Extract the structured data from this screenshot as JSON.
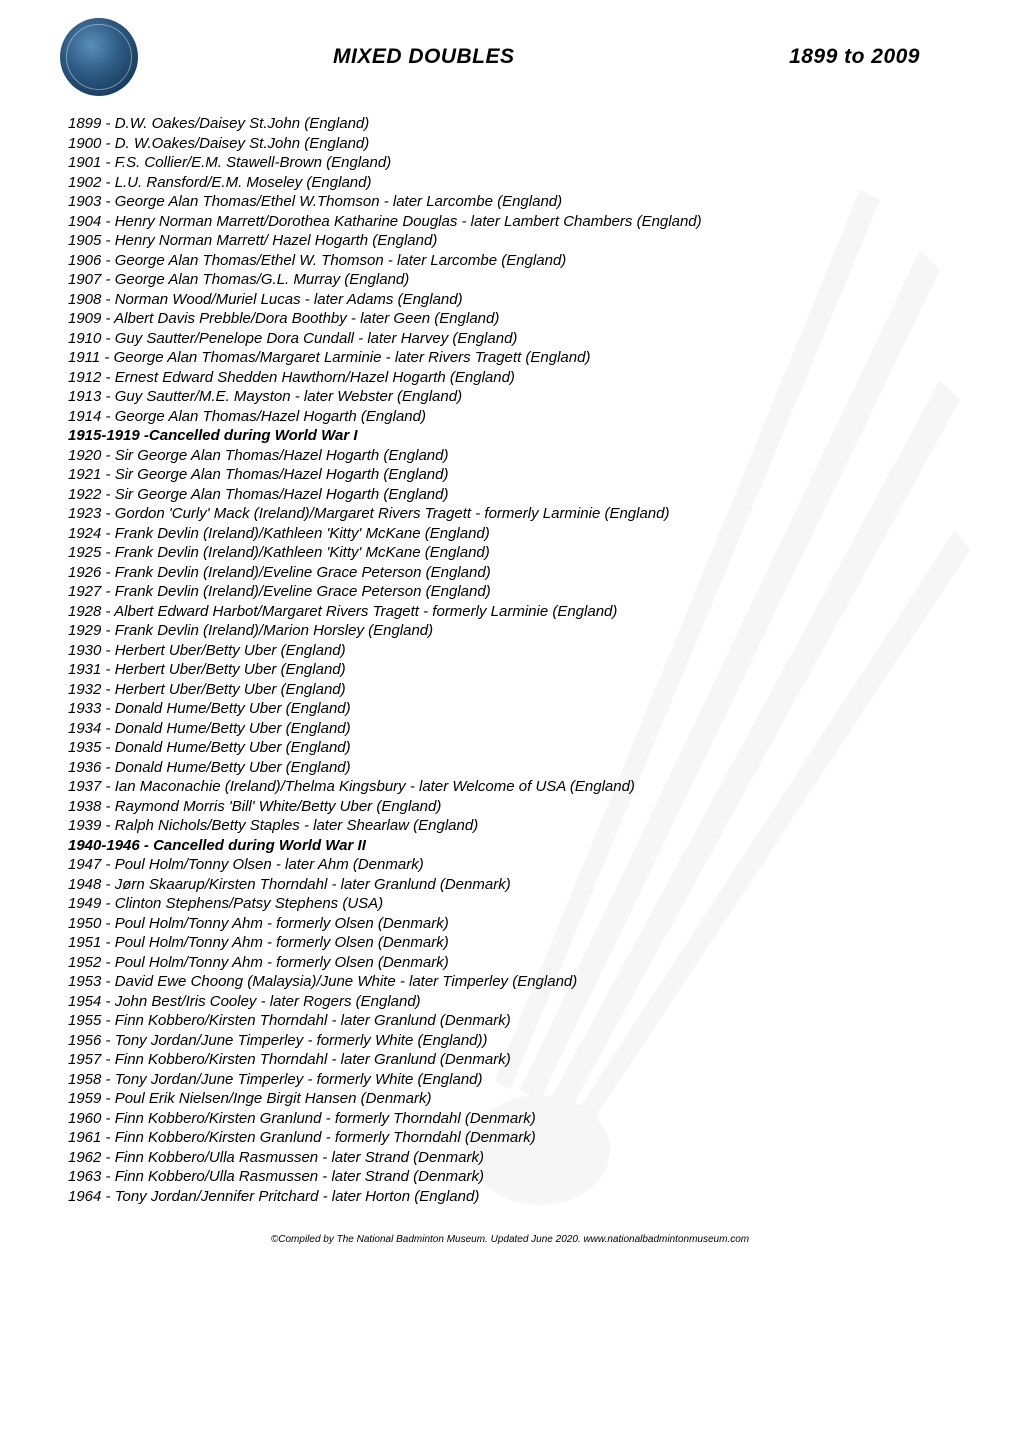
{
  "header": {
    "title": "MIXED DOUBLES",
    "date_range": "1899 to 2009"
  },
  "entries": [
    {
      "text": "1899 - D.W. Oakes/Daisey St.John (England)",
      "bold": false
    },
    {
      "text": "1900 - D. W.Oakes/Daisey St.John (England)",
      "bold": false
    },
    {
      "text": "1901 - F.S. Collier/E.M. Stawell-Brown (England)",
      "bold": false
    },
    {
      "text": "1902 - L.U. Ransford/E.M. Moseley (England)",
      "bold": false
    },
    {
      "text": "1903 - George Alan Thomas/Ethel W.Thomson - later Larcombe (England)",
      "bold": false
    },
    {
      "text": "1904 - Henry Norman Marrett/Dorothea Katharine Douglas - later Lambert Chambers (England)",
      "bold": false
    },
    {
      "text": "1905 - Henry Norman Marrett/ Hazel Hogarth (England)",
      "bold": false
    },
    {
      "text": "1906 - George Alan Thomas/Ethel W. Thomson - later Larcombe (England)",
      "bold": false
    },
    {
      "text": "1907 - George Alan Thomas/G.L. Murray (England)",
      "bold": false
    },
    {
      "text": "1908 - Norman Wood/Muriel Lucas - later Adams (England)",
      "bold": false
    },
    {
      "text": "1909 - Albert Davis Prebble/Dora Boothby - later Geen (England)",
      "bold": false
    },
    {
      "text": "1910 - Guy Sautter/Penelope Dora Cundall - later Harvey (England)",
      "bold": false
    },
    {
      "text": "1911 - George Alan Thomas/Margaret Larminie - later Rivers Tragett (England)",
      "bold": false
    },
    {
      "text": "1912 - Ernest Edward Shedden Hawthorn/Hazel Hogarth (England)",
      "bold": false
    },
    {
      "text": "1913 - Guy Sautter/M.E. Mayston - later Webster (England)",
      "bold": false
    },
    {
      "text": "1914 - George Alan Thomas/Hazel Hogarth (England)",
      "bold": false
    },
    {
      "text": "1915-1919 -Cancelled during World War I",
      "bold": true
    },
    {
      "text": "1920 - Sir George Alan Thomas/Hazel Hogarth (England)",
      "bold": false
    },
    {
      "text": "1921 - Sir George Alan Thomas/Hazel Hogarth (England)",
      "bold": false
    },
    {
      "text": "1922 - Sir George Alan Thomas/Hazel Hogarth (England)",
      "bold": false
    },
    {
      "text": "1923 - Gordon 'Curly' Mack (Ireland)/Margaret Rivers Tragett - formerly Larminie (England)",
      "bold": false
    },
    {
      "text": "1924 - Frank Devlin (Ireland)/Kathleen 'Kitty' McKane (England)",
      "bold": false
    },
    {
      "text": "1925 - Frank Devlin (Ireland)/Kathleen 'Kitty' McKane (England)",
      "bold": false
    },
    {
      "text": "1926 - Frank Devlin (Ireland)/Eveline Grace Peterson (England)",
      "bold": false
    },
    {
      "text": "1927 - Frank Devlin (Ireland)/Eveline Grace Peterson (England)",
      "bold": false
    },
    {
      "text": "1928 - Albert Edward Harbot/Margaret Rivers Tragett - formerly Larminie (England)",
      "bold": false
    },
    {
      "text": "1929 - Frank Devlin (Ireland)/Marion Horsley (England)",
      "bold": false
    },
    {
      "text": "1930 - Herbert Uber/Betty Uber (England)",
      "bold": false
    },
    {
      "text": "1931 - Herbert Uber/Betty Uber (England)",
      "bold": false
    },
    {
      "text": "1932 - Herbert Uber/Betty Uber (England)",
      "bold": false
    },
    {
      "text": "1933 - Donald Hume/Betty Uber (England)",
      "bold": false
    },
    {
      "text": "1934 - Donald Hume/Betty Uber (England)",
      "bold": false
    },
    {
      "text": "1935 - Donald Hume/Betty Uber (England)",
      "bold": false
    },
    {
      "text": "1936 - Donald Hume/Betty Uber (England)",
      "bold": false
    },
    {
      "text": "1937 - Ian Maconachie (Ireland)/Thelma Kingsbury - later Welcome of USA (England)",
      "bold": false
    },
    {
      "text": "1938 - Raymond Morris 'Bill' White/Betty Uber (England)",
      "bold": false
    },
    {
      "text": "1939 - Ralph Nichols/Betty Staples - later Shearlaw (England)",
      "bold": false
    },
    {
      "text": "1940-1946 - Cancelled during World War II",
      "bold": true
    },
    {
      "text": "1947 - Poul Holm/Tonny Olsen - later Ahm (Denmark)",
      "bold": false
    },
    {
      "text": "1948 - Jørn Skaarup/Kirsten Thorndahl - later Granlund (Denmark)",
      "bold": false
    },
    {
      "text": "1949 - Clinton Stephens/Patsy Stephens (USA)",
      "bold": false
    },
    {
      "text": "1950 - Poul Holm/Tonny Ahm - formerly Olsen (Denmark)",
      "bold": false
    },
    {
      "text": "1951 - Poul Holm/Tonny Ahm - formerly Olsen (Denmark)",
      "bold": false
    },
    {
      "text": "1952 - Poul Holm/Tonny Ahm - formerly Olsen (Denmark)",
      "bold": false
    },
    {
      "text": "1953 - David Ewe Choong (Malaysia)/June White - later Timperley (England)",
      "bold": false
    },
    {
      "text": "1954 - John Best/Iris Cooley - later Rogers (England)",
      "bold": false
    },
    {
      "text": "1955 - Finn Kobbero/Kirsten Thorndahl - later Granlund (Denmark)",
      "bold": false
    },
    {
      "text": "1956 - Tony Jordan/June Timperley - formerly White (England))",
      "bold": false
    },
    {
      "text": "1957 - Finn Kobbero/Kirsten Thorndahl - later Granlund (Denmark)",
      "bold": false
    },
    {
      "text": "1958 - Tony Jordan/June Timperley - formerly White (England)",
      "bold": false
    },
    {
      "text": "1959 - Poul Erik Nielsen/Inge Birgit Hansen (Denmark)",
      "bold": false
    },
    {
      "text": "1960 - Finn Kobbero/Kirsten Granlund - formerly Thorndahl (Denmark)",
      "bold": false
    },
    {
      "text": "1961 - Finn Kobbero/Kirsten Granlund - formerly Thorndahl (Denmark)",
      "bold": false
    },
    {
      "text": "1962 - Finn Kobbero/Ulla Rasmussen - later Strand (Denmark)",
      "bold": false
    },
    {
      "text": "1963 - Finn Kobbero/Ulla Rasmussen - later Strand (Denmark)",
      "bold": false
    },
    {
      "text": "1964 - Tony Jordan/Jennifer Pritchard - later Horton (England)",
      "bold": false
    }
  ],
  "footer": "©Compiled by The National Badminton Museum. Updated June 2020. www.nationalbadmintonmuseum.com"
}
